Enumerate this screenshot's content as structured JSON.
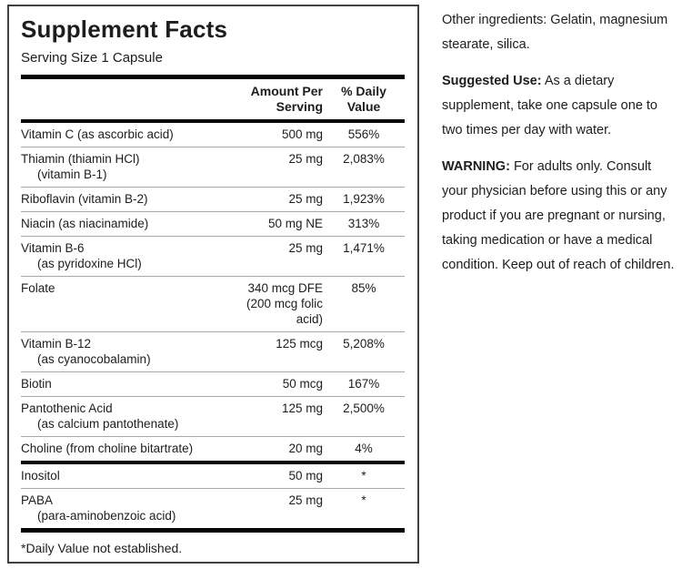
{
  "colors": {
    "text": "#1d1d1d",
    "panel_border": "#404040",
    "thick_bar": "#060606",
    "row_separator": "#a8a8a8"
  },
  "panel": {
    "title": "Supplement Facts",
    "serving_size": "Serving Size 1 Capsule",
    "header": {
      "amount": "Amount Per\nServing",
      "daily_value": "% Daily Value"
    },
    "rows": [
      {
        "name": "Vitamin C (as ascorbic acid)",
        "amount": "500 mg",
        "dv": "556%"
      },
      {
        "name": "Thiamin (thiamin HCl)",
        "name2": "(vitamin B-1)",
        "amount": "25 mg",
        "dv": "2,083%"
      },
      {
        "name": "Riboflavin (vitamin B-2)",
        "amount": "25 mg",
        "dv": "1,923%"
      },
      {
        "name": "Niacin (as niacinamide)",
        "amount": "50 mg NE",
        "dv": "313%"
      },
      {
        "name": "Vitamin B-6",
        "name2": "(as pyridoxine HCl)",
        "amount": "25 mg",
        "dv": "1,471%"
      },
      {
        "name": "Folate",
        "amount": "340 mcg DFE\n(200 mcg folic\nacid)",
        "dv": "85%"
      },
      {
        "name": "Vitamin B-12",
        "name2": "(as cyanocobalamin)",
        "amount": "125 mcg",
        "dv": "5,208%"
      },
      {
        "name": "Biotin",
        "amount": "50 mcg",
        "dv": "167%"
      },
      {
        "name": "Pantothenic Acid",
        "name2": "(as calcium pantothenate)",
        "amount": "125 mg",
        "dv": "2,500%"
      },
      {
        "name": "Choline (from choline bitartrate)",
        "amount": "20 mg",
        "dv": "4%"
      }
    ],
    "no_dv_rows": [
      {
        "name": "Inositol",
        "amount": "50 mg",
        "dv": "*"
      },
      {
        "name": "PABA",
        "name2": "(para-aminobenzoic acid)",
        "amount": "25 mg",
        "dv": "*"
      }
    ],
    "footnote": "*Daily Value not established."
  },
  "side": {
    "other_ingredients": "Other ingredients: Gelatin, magnesium stearate, silica.",
    "suggested_use_label": "Suggested Use:",
    "suggested_use_text": " As a dietary supplement, take one capsule one to two times per day with water.",
    "warning_label": "WARNING:",
    "warning_text": " For adults only. Consult your physician before using this or any product if you are pregnant or nursing, taking medication or have a medical condition. Keep out of reach of children."
  }
}
